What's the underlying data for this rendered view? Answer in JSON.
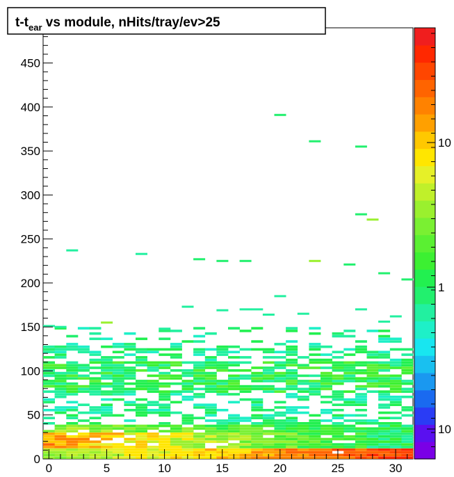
{
  "chart_data": {
    "type": "heatmap",
    "title": {
      "main": "t-t",
      "subscript": "ear",
      "rest": " vs module, nHits/tray/ev>25"
    },
    "xlabel": "",
    "ylabel": "",
    "xlim": [
      -0.5,
      31.5
    ],
    "ylim": [
      0,
      490
    ],
    "z_scale": "log",
    "x_ticks": [
      0,
      5,
      10,
      15,
      20,
      25,
      30
    ],
    "y_ticks": [
      0,
      50,
      100,
      150,
      200,
      250,
      300,
      350,
      400,
      450
    ],
    "colorbar_labels": [
      "10",
      "1",
      "10"
    ],
    "palette": [
      "#7a00e6",
      "#5a10f0",
      "#2a3cf5",
      "#1a6af0",
      "#1a98f0",
      "#19c0f0",
      "#18e6f0",
      "#1ef0c8",
      "#22f0a0",
      "#22f0 6e",
      "#22f050",
      "#3cf032",
      "#5af032",
      "#7af032",
      "#9af02e",
      "#c0f02a",
      "#e6f028",
      "#ffe600",
      "#ffc800",
      "#ffa000",
      "#ff8200",
      "#ff6400",
      "#ff4600",
      "#ff2800",
      "#f01e1e"
    ],
    "bins": {
      "note": "",
      "sparse_points": [
        {
          "x": 2,
          "y": 237,
          "c": 8
        },
        {
          "x": 8,
          "y": 233,
          "c": 8
        },
        {
          "x": 13,
          "y": 227,
          "c": 9
        },
        {
          "x": 15,
          "y": 225,
          "c": 9
        },
        {
          "x": 17,
          "y": 225,
          "c": 9
        },
        {
          "x": 23,
          "y": 225,
          "c": 14
        },
        {
          "x": 26,
          "y": 221,
          "c": 9
        },
        {
          "x": 20,
          "y": 391,
          "c": 9
        },
        {
          "x": 23,
          "y": 361,
          "c": 9
        },
        {
          "x": 27,
          "y": 355,
          "c": 9
        },
        {
          "x": 27,
          "y": 278,
          "c": 9
        },
        {
          "x": 28,
          "y": 272,
          "c": 14
        },
        {
          "x": 29,
          "y": 211,
          "c": 9
        },
        {
          "x": 31,
          "y": 204,
          "c": 9
        },
        {
          "x": 12,
          "y": 173,
          "c": 8
        },
        {
          "x": 15,
          "y": 169,
          "c": 8
        },
        {
          "x": 17,
          "y": 170,
          "c": 8
        },
        {
          "x": 18,
          "y": 170,
          "c": 8
        },
        {
          "x": 20,
          "y": 185,
          "c": 8
        },
        {
          "x": 19,
          "y": 164,
          "c": 8
        },
        {
          "x": 22,
          "y": 165,
          "c": 8
        },
        {
          "x": 27,
          "y": 170,
          "c": 8
        },
        {
          "x": 30,
          "y": 162,
          "c": 8
        },
        {
          "x": 29,
          "y": 156,
          "c": 8
        },
        {
          "x": 5,
          "y": 155,
          "c": 14
        },
        {
          "x": 10,
          "y": 148,
          "c": 8
        },
        {
          "x": 0,
          "y": 151,
          "c": 8
        },
        {
          "x": 1,
          "y": 150,
          "c": 8
        }
      ]
    }
  }
}
